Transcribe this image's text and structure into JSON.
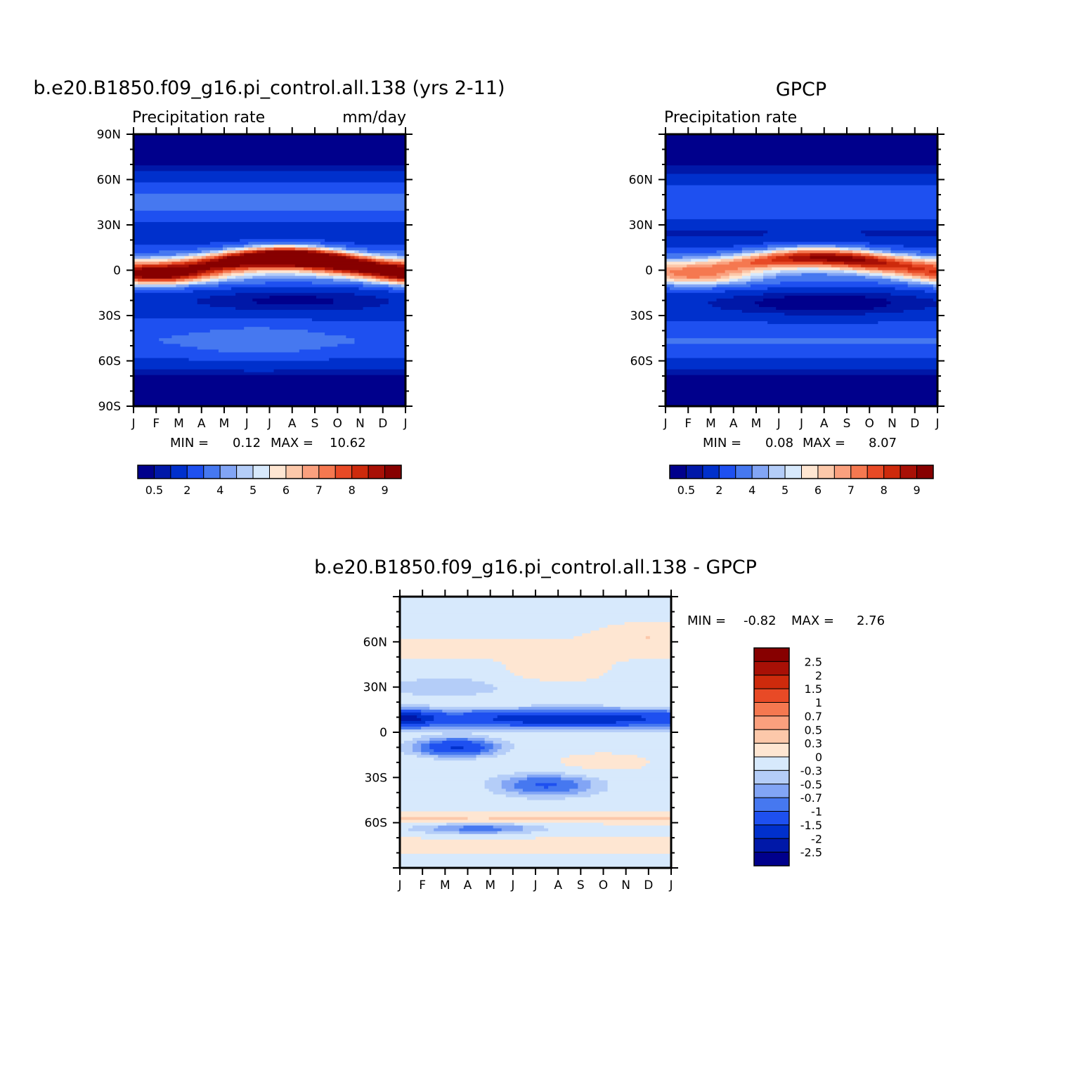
{
  "chart_data": [
    {
      "type": "heatmap",
      "title": "b.e20.B1850.f09_g16.pi_control.all.138 (yrs 2-11)",
      "left_subtitle": "Precipitation rate",
      "right_subtitle": "mm/day",
      "x_ticks": [
        "J",
        "F",
        "M",
        "A",
        "M",
        "J",
        "J",
        "A",
        "S",
        "O",
        "N",
        "D",
        "J"
      ],
      "y_ticks": [
        "90N",
        "60N",
        "30N",
        "0",
        "30S",
        "60S",
        "90S"
      ],
      "stats": {
        "min_label": "MIN =",
        "min": "0.12",
        "max_label": "MAX =",
        "max": "10.62"
      },
      "levels": [
        "0.5",
        "2",
        "4",
        "5",
        "6",
        "7",
        "8",
        "9"
      ],
      "colors": [
        "#00008c",
        "#0018a8",
        "#0030cc",
        "#1e50f0",
        "#4678f0",
        "#82a5f5",
        "#b4cdf8",
        "#d7e9fc",
        "#fee6d2",
        "#fcc8aa",
        "#faa07e",
        "#f57850",
        "#e84a26",
        "#cd2a0c",
        "#a81006",
        "#870000"
      ],
      "dataset": "model",
      "x": [
        0,
        1,
        2,
        3,
        4,
        5,
        6,
        7,
        8,
        9,
        10,
        11,
        12
      ],
      "y": [
        -90,
        -80,
        -70,
        -60,
        -50,
        -40,
        -30,
        -20,
        -10,
        0,
        10,
        20,
        30,
        40,
        50,
        60,
        70,
        80,
        90
      ],
      "min": 0.12,
      "max": 10.62
    },
    {
      "type": "heatmap",
      "title": "GPCP",
      "left_subtitle": "Precipitation rate",
      "x_ticks": [
        "J",
        "F",
        "M",
        "A",
        "M",
        "J",
        "J",
        "A",
        "S",
        "O",
        "N",
        "D",
        "J"
      ],
      "y_ticks": [
        "60N",
        "30N",
        "0",
        "30S",
        "60S"
      ],
      "stats": {
        "min_label": "MIN =",
        "min": "0.08",
        "max_label": "MAX =",
        "max": "8.07"
      },
      "levels": [
        "0.5",
        "2",
        "4",
        "5",
        "6",
        "7",
        "8",
        "9"
      ],
      "colors": [
        "#00008c",
        "#0018a8",
        "#0030cc",
        "#1e50f0",
        "#4678f0",
        "#82a5f5",
        "#b4cdf8",
        "#d7e9fc",
        "#fee6d2",
        "#fcc8aa",
        "#faa07e",
        "#f57850",
        "#e84a26",
        "#cd2a0c",
        "#a81006",
        "#870000"
      ],
      "dataset": "obs",
      "x": [
        0,
        1,
        2,
        3,
        4,
        5,
        6,
        7,
        8,
        9,
        10,
        11,
        12
      ],
      "y": [
        -90,
        -80,
        -70,
        -60,
        -50,
        -40,
        -30,
        -20,
        -10,
        0,
        10,
        20,
        30,
        40,
        50,
        60,
        70,
        80,
        90
      ],
      "min": 0.08,
      "max": 8.07
    },
    {
      "type": "heatmap",
      "title": "b.e20.B1850.f09_g16.pi_control.all.138 - GPCP",
      "x_ticks": [
        "J",
        "F",
        "M",
        "A",
        "M",
        "J",
        "J",
        "A",
        "S",
        "O",
        "N",
        "D",
        "J"
      ],
      "y_ticks": [
        "60N",
        "30N",
        "0",
        "30S",
        "60S"
      ],
      "stats": {
        "min_label": "MIN =",
        "min": "-0.82",
        "max_label": "MAX =",
        "max": "2.76"
      },
      "levels": [
        "2.5",
        "2",
        "1.5",
        "1",
        "0.7",
        "0.5",
        "0.3",
        "0",
        "-0.3",
        "-0.5",
        "-0.7",
        "-1",
        "-1.5",
        "-2",
        "-2.5"
      ],
      "colors": [
        "#870000",
        "#a81006",
        "#cd2a0c",
        "#e84a26",
        "#f57850",
        "#faa07e",
        "#fcc8aa",
        "#fee6d2",
        "#d7e9fc",
        "#b4cdf8",
        "#82a5f5",
        "#4678f0",
        "#1e50f0",
        "#0030cc",
        "#0018a8",
        "#00008c"
      ],
      "dataset": "diff",
      "x": [
        0,
        1,
        2,
        3,
        4,
        5,
        6,
        7,
        8,
        9,
        10,
        11,
        12
      ],
      "y": [
        -90,
        -80,
        -70,
        -60,
        -50,
        -40,
        -30,
        -20,
        -10,
        0,
        10,
        20,
        30,
        40,
        50,
        60,
        70,
        80,
        90
      ],
      "min": -0.82,
      "max": 2.76
    }
  ]
}
